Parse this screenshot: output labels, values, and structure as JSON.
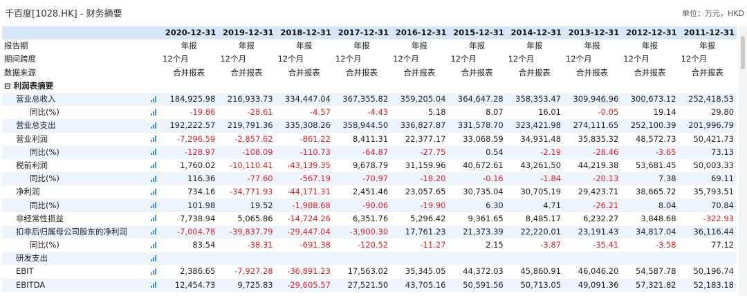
{
  "header": {
    "title": "千百度[1028.HK] - 财务摘要",
    "unit": "单位：万元，HKD"
  },
  "years": [
    "2020-12-31",
    "2019-12-31",
    "2018-12-31",
    "2017-12-31",
    "2016-12-31",
    "2015-12-31",
    "2014-12-31",
    "2013-12-31",
    "2012-12-31",
    "2011-12-31"
  ],
  "meta_rows": [
    {
      "label": "报告期",
      "align": "center",
      "values": [
        "年报",
        "年报",
        "年报",
        "年报",
        "年报",
        "年报",
        "年报",
        "年报",
        "年报",
        "年报"
      ]
    },
    {
      "label": "期间跨度",
      "align": "left",
      "values": [
        "12个月",
        "12个月",
        "12个月",
        "12个月",
        "12个月",
        "12个月",
        "12个月",
        "12个月",
        "12个月",
        "12个月"
      ]
    },
    {
      "label": "数据来源",
      "align": "center",
      "values": [
        "合并报表",
        "合并报表",
        "合并报表",
        "合并报表",
        "合并报表",
        "合并报表",
        "合并报表",
        "合并报表",
        "合并报表",
        "合并报表"
      ]
    }
  ],
  "section_label": "⊟ 利润表摘要",
  "rows": [
    {
      "label": "营业总收入",
      "indent": 1,
      "values": [
        "184,925.98",
        "216,933.73",
        "334,447.04",
        "367,355.82",
        "359,205.04",
        "364,647.28",
        "358,353.47",
        "309,946.96",
        "300,673.12",
        "252,418.53"
      ]
    },
    {
      "label": "同比(%)",
      "indent": 2,
      "values": [
        "-19.86",
        "-28.61",
        "-4.57",
        "-4.43",
        "5.18",
        "8.07",
        "16.01",
        "-0.05",
        "19.14",
        "29.80"
      ]
    },
    {
      "label": "营业总支出",
      "indent": 1,
      "values": [
        "192,222.57",
        "219,791.36",
        "335,308.26",
        "358,944.50",
        "336,827.87",
        "331,578.70",
        "323,421.98",
        "274,111.65",
        "252,100.39",
        "201,996.79"
      ]
    },
    {
      "label": "营业利润",
      "indent": 1,
      "values": [
        "-7,296.59",
        "-2,857.62",
        "-861.22",
        "8,411.31",
        "22,377.17",
        "33,068.59",
        "34,931.48",
        "35,835.32",
        "48,572.73",
        "50,421.73"
      ]
    },
    {
      "label": "同比(%)",
      "indent": 2,
      "values": [
        "-128.97",
        "-108.09",
        "-110.73",
        "-64.87",
        "-27.75",
        "0.54",
        "-2.19",
        "-28.46",
        "-3.65",
        "73.13"
      ]
    },
    {
      "label": "税前利润",
      "indent": 1,
      "values": [
        "1,760.02",
        "-10,110.41",
        "-43,139.35",
        "9,678.79",
        "31,159.96",
        "40,672.61",
        "43,261.50",
        "44,219.38",
        "53,681.45",
        "50,003.33"
      ]
    },
    {
      "label": "同比(%)",
      "indent": 2,
      "values": [
        "116.36",
        "-77.60",
        "-567.19",
        "-70.97",
        "-18.20",
        "-0.16",
        "-1.84",
        "-20.13",
        "7.38",
        "69.11"
      ]
    },
    {
      "label": "净利润",
      "indent": 1,
      "values": [
        "734.16",
        "-34,771.93",
        "-44,171.31",
        "2,451.46",
        "23,057.65",
        "30,735.04",
        "30,705.19",
        "29,423.71",
        "38,665.72",
        "35,793.51"
      ]
    },
    {
      "label": "同比(%)",
      "indent": 2,
      "values": [
        "101.98",
        "19.52",
        "-1,988.68",
        "-90.06",
        "-19.90",
        "6.30",
        "4.71",
        "-26.21",
        "8.04",
        "70.84"
      ]
    },
    {
      "label": "非经常性损益",
      "indent": 1,
      "values": [
        "7,738.94",
        "5,065.86",
        "-14,724.26",
        "6,351.76",
        "5,296.42",
        "9,361.65",
        "8,485.17",
        "6,232.27",
        "3,848.68",
        "-322.93"
      ]
    },
    {
      "label": "扣非后归属母公司股东的净利润",
      "indent": 1,
      "values": [
        "-7,004.78",
        "-39,837.79",
        "-29,447.04",
        "-3,900.30",
        "17,761.23",
        "21,373.39",
        "22,220.01",
        "23,191.43",
        "34,817.04",
        "36,116.44"
      ]
    },
    {
      "label": "同比(%)",
      "indent": 2,
      "values": [
        "83.54",
        "-38.31",
        "-691.38",
        "-120.52",
        "-11.27",
        "2.15",
        "-3.87",
        "-35.41",
        "-3.58",
        "77.12"
      ]
    },
    {
      "label": "研发支出",
      "indent": 1,
      "values": [
        "",
        "",
        "",
        "",
        "",
        "",
        "",
        "",
        "",
        ""
      ]
    },
    {
      "label": "EBIT",
      "indent": 1,
      "values": [
        "2,386.65",
        "-7,927.28",
        "-36,891.23",
        "17,563.02",
        "35,345.05",
        "44,372.03",
        "45,860.91",
        "46,046.20",
        "54,587.78",
        "50,196.74"
      ]
    },
    {
      "label": "EBITDA",
      "indent": 1,
      "values": [
        "12,454.73",
        "9,725.83",
        "-29,605.57",
        "27,521.50",
        "43,705.16",
        "50,591.56",
        "50,713.05",
        "49,091.36",
        "57,321.82",
        "52,183.18"
      ]
    }
  ],
  "colors": {
    "header_bg": "#d8e7f8",
    "alt_row_bg": "#eef4fc",
    "negative": "#e0202a",
    "icon": "#4a90e2"
  },
  "icons": {
    "row_chart": "bar-chart-icon"
  }
}
